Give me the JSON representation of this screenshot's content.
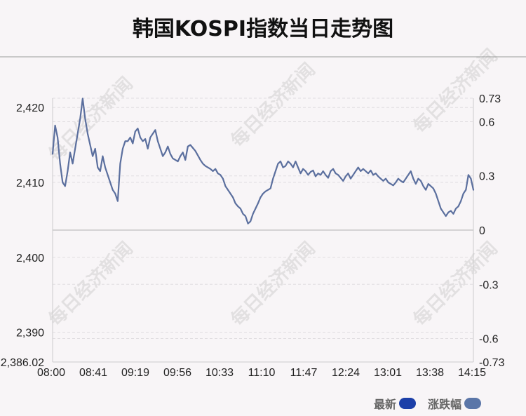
{
  "title": "韩国KOSPI指数当日走势图",
  "watermark": "每日经济新闻",
  "legend": [
    {
      "label": "最新",
      "color": "#1c3fa8"
    },
    {
      "label": "涨跌幅",
      "color": "#5b76a8"
    }
  ],
  "chart_data": {
    "type": "line",
    "line_color": "#5b6f9e",
    "x_ticks": [
      "08:00",
      "08:41",
      "09:19",
      "09:56",
      "10:33",
      "11:10",
      "11:47",
      "12:24",
      "13:01",
      "13:38",
      "14:15"
    ],
    "y_ticks_left": [
      "2,420",
      "2,410",
      "2,400",
      "2,390",
      "2,386.02"
    ],
    "y_ticks_right": [
      "0.73",
      "0.6",
      "0.3",
      "0",
      "-0.3",
      "-0.6",
      "-0.73"
    ],
    "ylim": [
      2386.02,
      2421.24
    ],
    "baseline": 2403.63,
    "right_ylim": [
      -0.73,
      0.73
    ],
    "series": [
      {
        "values": [
          2413.8,
          2417.6,
          2416.0,
          2412.5,
          2410.0,
          2409.5,
          2411.5,
          2414.0,
          2412.5,
          2414.5,
          2416.5,
          2418.5,
          2421.2,
          2418.5,
          2416.5,
          2415.0,
          2413.5,
          2414.5,
          2412.0,
          2411.5,
          2413.5,
          2412.0,
          2411.0,
          2410.0,
          2409.0,
          2408.5,
          2407.5,
          2412.5,
          2414.5,
          2415.5,
          2415.5,
          2416.0,
          2415.2,
          2416.8,
          2417.2,
          2416.0,
          2415.5,
          2415.8,
          2414.5,
          2416.0,
          2416.5,
          2417.0,
          2415.5,
          2414.5,
          2413.5,
          2414.0,
          2414.8,
          2413.8,
          2413.2,
          2413.0,
          2412.8,
          2413.5,
          2414.0,
          2413.0,
          2414.8,
          2415.0,
          2414.6,
          2414.2,
          2413.6,
          2413.0,
          2412.5,
          2412.2,
          2412.0,
          2411.8,
          2411.5,
          2411.8,
          2411.2,
          2411.0,
          2410.5,
          2409.5,
          2409.0,
          2408.5,
          2408.0,
          2407.2,
          2406.8,
          2406.5,
          2405.8,
          2405.5,
          2404.5,
          2404.8,
          2405.8,
          2406.5,
          2407.2,
          2408.0,
          2408.5,
          2408.8,
          2409.0,
          2409.2,
          2410.5,
          2411.5,
          2412.5,
          2412.8,
          2412.0,
          2412.2,
          2412.8,
          2412.5,
          2412.0,
          2412.8,
          2412.0,
          2411.2,
          2411.8,
          2411.5,
          2411.0,
          2411.4,
          2411.6,
          2410.8,
          2411.2,
          2411.0,
          2411.5,
          2411.0,
          2410.6,
          2411.5,
          2411.8,
          2411.2,
          2411.0,
          2410.6,
          2410.2,
          2410.8,
          2411.2,
          2410.5,
          2411.0,
          2411.5,
          2412.0,
          2411.5,
          2411.8,
          2411.5,
          2411.2,
          2411.6,
          2411.0,
          2411.2,
          2410.8,
          2410.5,
          2410.2,
          2410.5,
          2410.0,
          2409.8,
          2409.6,
          2410.0,
          2410.5,
          2410.2,
          2410.0,
          2410.5,
          2411.0,
          2411.5,
          2410.5,
          2409.8,
          2410.5,
          2410.2,
          2409.5,
          2409.0,
          2409.8,
          2409.5,
          2409.2,
          2408.5,
          2407.5,
          2406.5,
          2406.0,
          2405.5,
          2406.0,
          2406.2,
          2405.8,
          2406.5,
          2406.8,
          2407.5,
          2408.5,
          2409.0,
          2411.0,
          2410.5,
          2409.0
        ]
      }
    ]
  }
}
